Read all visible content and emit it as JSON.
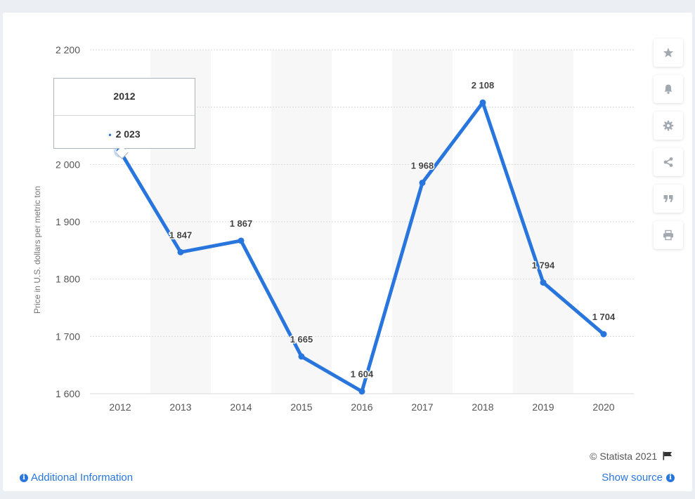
{
  "chart_data": {
    "type": "line",
    "categories": [
      "2012",
      "2013",
      "2014",
      "2015",
      "2016",
      "2017",
      "2018",
      "2019",
      "2020"
    ],
    "values": [
      2023,
      1847,
      1867,
      1665,
      1604,
      1968,
      2108,
      1794,
      1704
    ],
    "value_labels": [
      "2 023",
      "1 847",
      "1 867",
      "1 665",
      "1 604",
      "1 968",
      "2 108",
      "1 794",
      "1 704"
    ],
    "ylabel": "Price in U.S. dollars per metric ton",
    "ylim": [
      1600,
      2200
    ],
    "yticks": [
      1600,
      1700,
      1800,
      1900,
      2000,
      2100,
      2200
    ],
    "ytick_labels": [
      "1 600",
      "1 700",
      "1 800",
      "1 900",
      "2 000",
      "",
      "2 200"
    ],
    "grid": true,
    "line_color": "#2876dd",
    "highlighted_index": 0
  },
  "tooltip": {
    "year": "2012",
    "value": "2 023",
    "marker": "•"
  },
  "toolbar": {
    "buttons": [
      "star-icon",
      "bell-icon",
      "gear-icon",
      "share-icon",
      "quote-icon",
      "print-icon"
    ]
  },
  "footer": {
    "credit": "© Statista 2021",
    "additional_info": "Additional Information",
    "show_source": "Show source",
    "info_glyph": "i"
  },
  "colors": {
    "accent": "#2876dd",
    "band": "#f7f7f7",
    "grid": "#d8d8d8"
  }
}
